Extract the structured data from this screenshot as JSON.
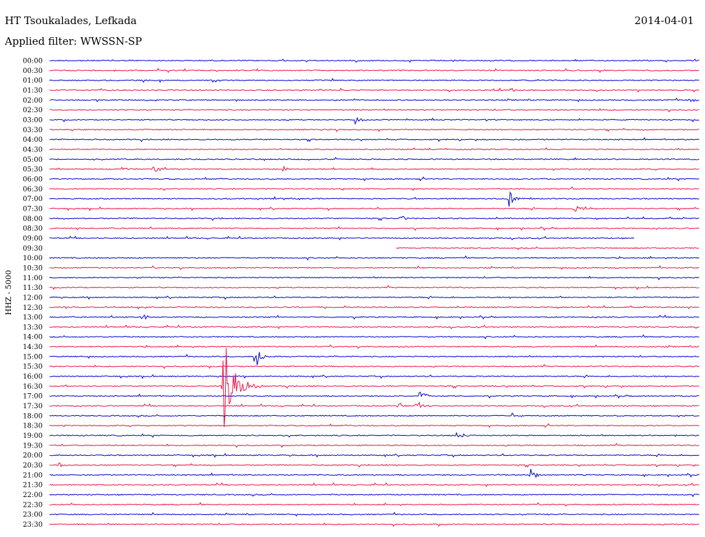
{
  "header": {
    "station": "HT Tsoukalades, Lefkada",
    "date": "2014-04-01",
    "filter": "Applied filter: WWSSN-SP"
  },
  "chart_data": {
    "type": "line",
    "title": "HT Tsoukalades, Lefkada",
    "ylabel": "HHZ - 5000",
    "x_unit": "minutes within line",
    "x_range": [
      0,
      30
    ],
    "series": [
      {
        "label": "00:00",
        "color": "#0000cc"
      },
      {
        "label": "00:30",
        "color": "#ee1144"
      },
      {
        "label": "01:00",
        "color": "#0000cc"
      },
      {
        "label": "01:30",
        "color": "#ee1144"
      },
      {
        "label": "02:00",
        "color": "#0000cc"
      },
      {
        "label": "02:30",
        "color": "#ee1144"
      },
      {
        "label": "03:00",
        "color": "#0000cc"
      },
      {
        "label": "03:30",
        "color": "#ee1144"
      },
      {
        "label": "04:00",
        "color": "#0000cc"
      },
      {
        "label": "04:30",
        "color": "#ee1144"
      },
      {
        "label": "05:00",
        "color": "#0000cc"
      },
      {
        "label": "05:30",
        "color": "#ee1144"
      },
      {
        "label": "06:00",
        "color": "#0000cc"
      },
      {
        "label": "06:30",
        "color": "#ee1144"
      },
      {
        "label": "07:00",
        "color": "#0000cc"
      },
      {
        "label": "07:30",
        "color": "#ee1144"
      },
      {
        "label": "08:00",
        "color": "#0000cc"
      },
      {
        "label": "08:30",
        "color": "#ee1144"
      },
      {
        "label": "09:00",
        "color": "#0000cc",
        "trace_minutes": [
          0,
          27
        ]
      },
      {
        "label": "09:30",
        "color": "#ee1144",
        "trace_minutes": [
          16,
          30
        ]
      },
      {
        "label": "10:00",
        "color": "#0000cc"
      },
      {
        "label": "10:30",
        "color": "#ee1144"
      },
      {
        "label": "11:00",
        "color": "#0000cc"
      },
      {
        "label": "11:30",
        "color": "#ee1144"
      },
      {
        "label": "12:00",
        "color": "#0000cc"
      },
      {
        "label": "12:30",
        "color": "#ee1144"
      },
      {
        "label": "13:00",
        "color": "#0000cc"
      },
      {
        "label": "13:30",
        "color": "#ee1144"
      },
      {
        "label": "14:00",
        "color": "#0000cc"
      },
      {
        "label": "14:30",
        "color": "#ee1144"
      },
      {
        "label": "15:00",
        "color": "#0000cc"
      },
      {
        "label": "15:30",
        "color": "#ee1144"
      },
      {
        "label": "16:00",
        "color": "#0000cc"
      },
      {
        "label": "16:30",
        "color": "#ee1144"
      },
      {
        "label": "17:00",
        "color": "#0000cc"
      },
      {
        "label": "17:30",
        "color": "#ee1144"
      },
      {
        "label": "18:00",
        "color": "#0000cc"
      },
      {
        "label": "18:30",
        "color": "#ee1144"
      },
      {
        "label": "19:00",
        "color": "#0000cc"
      },
      {
        "label": "19:30",
        "color": "#ee1144"
      },
      {
        "label": "20:00",
        "color": "#0000cc"
      },
      {
        "label": "20:30",
        "color": "#ee1144"
      },
      {
        "label": "21:00",
        "color": "#0000cc"
      },
      {
        "label": "21:30",
        "color": "#ee1144"
      },
      {
        "label": "22:00",
        "color": "#0000cc"
      },
      {
        "label": "22:30",
        "color": "#ee1144"
      },
      {
        "label": "23:00",
        "color": "#0000cc"
      },
      {
        "label": "23:30",
        "color": "#ee1144"
      }
    ],
    "events": [
      {
        "line": "02:00",
        "minute": 29.5,
        "amp": 6
      },
      {
        "line": "03:00",
        "minute": 14.1,
        "amp": 7
      },
      {
        "line": "01:30",
        "minute": 21.3,
        "amp": 5
      },
      {
        "line": "05:30",
        "minute": 4.8,
        "amp": 12
      },
      {
        "line": "05:30",
        "minute": 3.4,
        "amp": 5
      },
      {
        "line": "05:30",
        "minute": 10.8,
        "amp": 5
      },
      {
        "line": "07:00",
        "minute": 21.2,
        "amp": 16
      },
      {
        "line": "07:30",
        "minute": 24.2,
        "amp": 8
      },
      {
        "line": "07:30",
        "minute": 24.7,
        "amp": 8
      },
      {
        "line": "08:00",
        "minute": 16.2,
        "amp": 8
      },
      {
        "line": "13:00",
        "minute": 4.3,
        "amp": 7
      },
      {
        "line": "15:00",
        "minute": 9.5,
        "amp": 20
      },
      {
        "line": "16:30",
        "minute": 8.0,
        "amp": 78
      },
      {
        "line": "17:00",
        "minute": 17.1,
        "amp": 12
      },
      {
        "line": "17:30",
        "minute": 16.1,
        "amp": 10
      },
      {
        "line": "17:30",
        "minute": 16.9,
        "amp": 12
      },
      {
        "line": "18:00",
        "minute": 21.3,
        "amp": 6
      },
      {
        "line": "19:00",
        "minute": 18.8,
        "amp": 8
      },
      {
        "line": "21:00",
        "minute": 22.2,
        "amp": 10
      },
      {
        "line": "20:30",
        "minute": 0.4,
        "amp": 6
      }
    ],
    "grid": false,
    "legend": "none"
  }
}
